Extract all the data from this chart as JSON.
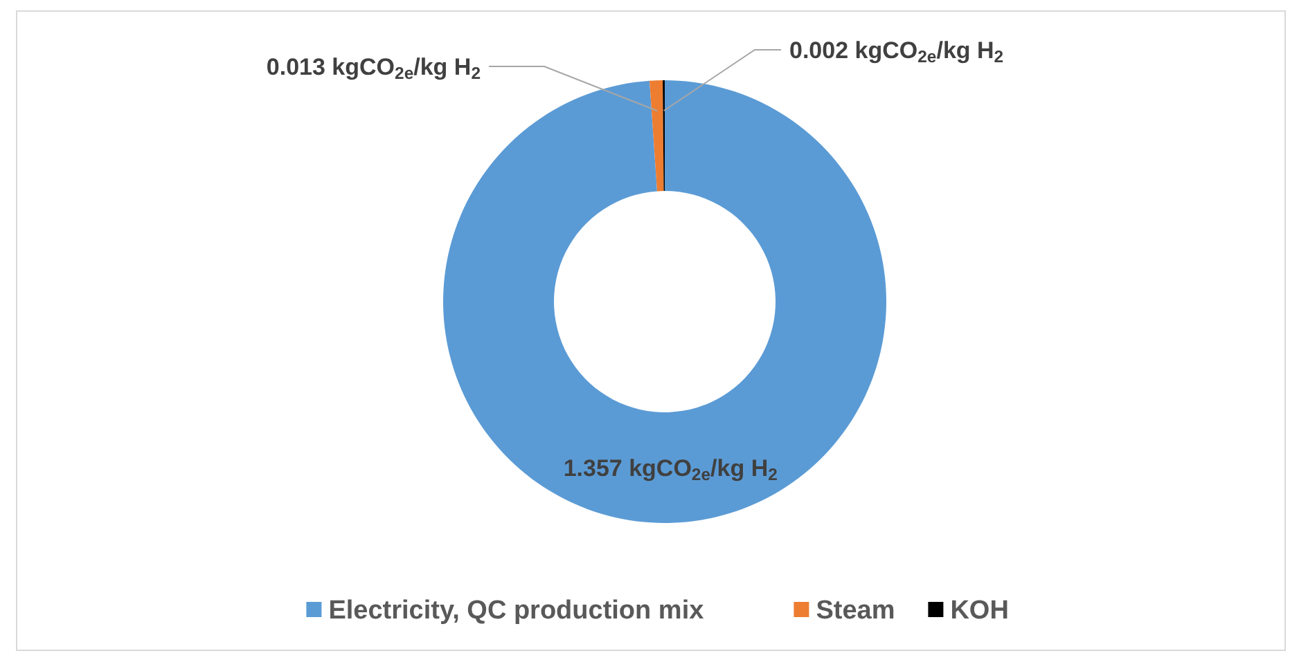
{
  "chart_data": {
    "type": "donut",
    "categories": [
      "Electricity, QC production mix",
      "Steam",
      "KOH"
    ],
    "values": [
      1.357,
      0.013,
      0.002
    ],
    "colors": [
      "#5b9bd5",
      "#ed7d31",
      "#000000"
    ],
    "value_labels": [
      "1.357 kgCO$_{2e}$/kg H$_{2}$",
      "0.013 kgCO$_{2e}$/kg H$_{2}$",
      "0.002 kgCO$_{2e}$/kg H$_{2}$"
    ],
    "legend": "bottom"
  }
}
